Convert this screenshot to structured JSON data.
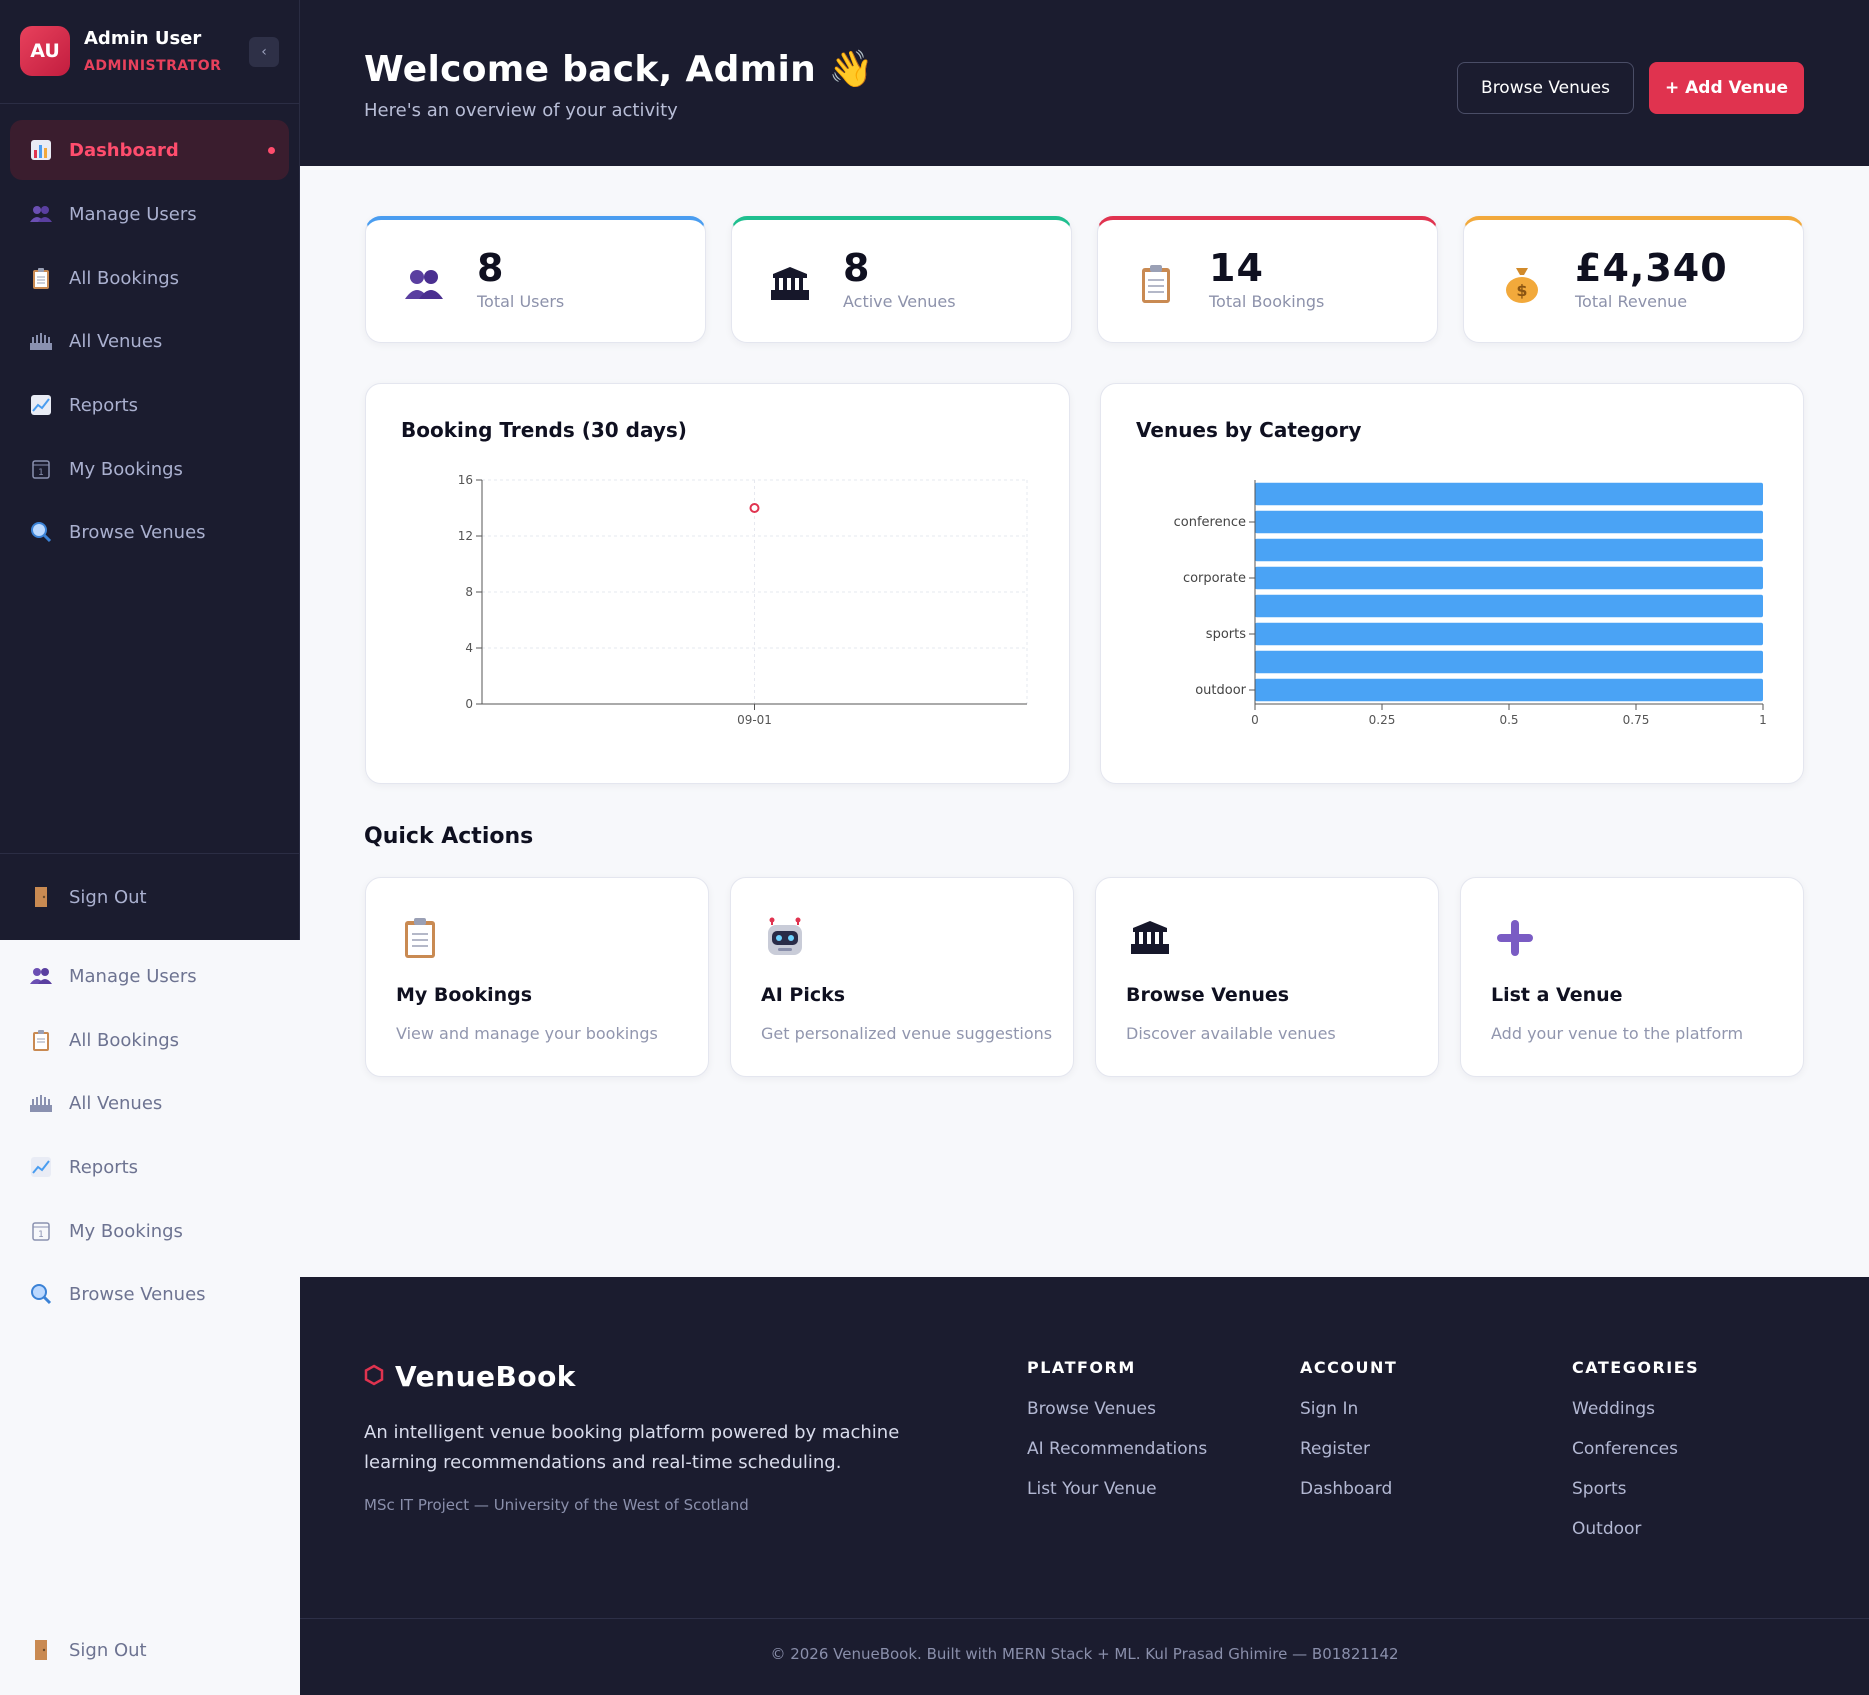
{
  "profile": {
    "initials": "AU",
    "name": "Admin User",
    "role": "ADMINISTRATOR"
  },
  "sidebar": {
    "collapse_icon": "chevron-left-icon",
    "items": [
      {
        "label": "Dashboard",
        "icon": "bar-chart-icon",
        "active": true
      },
      {
        "label": "Manage Users",
        "icon": "users-icon"
      },
      {
        "label": "All Bookings",
        "icon": "clipboard-icon"
      },
      {
        "label": "All Venues",
        "icon": "stadium-icon"
      },
      {
        "label": "Reports",
        "icon": "line-chart-icon"
      },
      {
        "label": "My Bookings",
        "icon": "calendar-icon"
      },
      {
        "label": "Browse Venues",
        "icon": "magnifier-icon"
      }
    ],
    "signout": "Sign Out"
  },
  "header": {
    "title": "Welcome back, Admin 👋",
    "subtitle": "Here's an overview of your activity",
    "browse_btn": "Browse Venues",
    "add_btn": "+ Add Venue"
  },
  "stats": [
    {
      "value": "8",
      "label": "Total Users",
      "color": "#4a9df0",
      "icon": "users-icon"
    },
    {
      "value": "8",
      "label": "Active Venues",
      "color": "#1fbf8f",
      "icon": "stadium-icon"
    },
    {
      "value": "14",
      "label": "Total Bookings",
      "color": "#e0334f",
      "icon": "clipboard-icon"
    },
    {
      "value": "£4,340",
      "label": "Total Revenue",
      "color": "#f2a93b",
      "icon": "money-bag-icon"
    }
  ],
  "chart_data": [
    {
      "type": "scatter",
      "title": "Booking Trends (30 days)",
      "x": [
        "09-01"
      ],
      "y": [
        14
      ],
      "ylim": [
        0,
        16
      ],
      "yticks": [
        0,
        4,
        8,
        12,
        16
      ],
      "grid": true,
      "color": "#e0334f"
    },
    {
      "type": "bar",
      "orientation": "horizontal",
      "title": "Venues by Category",
      "categories": [
        "",
        "conference",
        "",
        "corporate",
        "",
        "sports",
        "",
        "outdoor"
      ],
      "values": [
        1,
        1,
        1,
        1,
        1,
        1,
        1,
        1
      ],
      "xlim": [
        0,
        1
      ],
      "xticks": [
        "0",
        "0.25",
        "0.5",
        "0.75",
        "1"
      ],
      "color": "#4aa3f5"
    }
  ],
  "quick_actions": {
    "title": "Quick Actions",
    "items": [
      {
        "name": "My Bookings",
        "desc": "View and manage your bookings",
        "icon": "clipboard-icon"
      },
      {
        "name": "AI Picks",
        "desc": "Get personalized venue suggestions",
        "icon": "robot-icon"
      },
      {
        "name": "Browse Venues",
        "desc": "Discover available venues",
        "icon": "stadium-icon"
      },
      {
        "name": "List a Venue",
        "desc": "Add your venue to the platform",
        "icon": "plus-icon"
      }
    ]
  },
  "footer": {
    "brand": "VenueBook",
    "description": "An intelligent venue booking platform powered by machine learning recommendations and real-time scheduling.",
    "note": "MSc IT Project — University of the West of Scotland",
    "columns": [
      {
        "title": "PLATFORM",
        "links": [
          "Browse Venues",
          "AI Recommendations",
          "List Your Venue"
        ]
      },
      {
        "title": "ACCOUNT",
        "links": [
          "Sign In",
          "Register",
          "Dashboard"
        ]
      },
      {
        "title": "CATEGORIES",
        "links": [
          "Weddings",
          "Conferences",
          "Sports",
          "Outdoor"
        ]
      }
    ],
    "copyright": "© 2026 VenueBook. Built with MERN Stack + ML. Kul Prasad Ghimire — B01821142"
  }
}
